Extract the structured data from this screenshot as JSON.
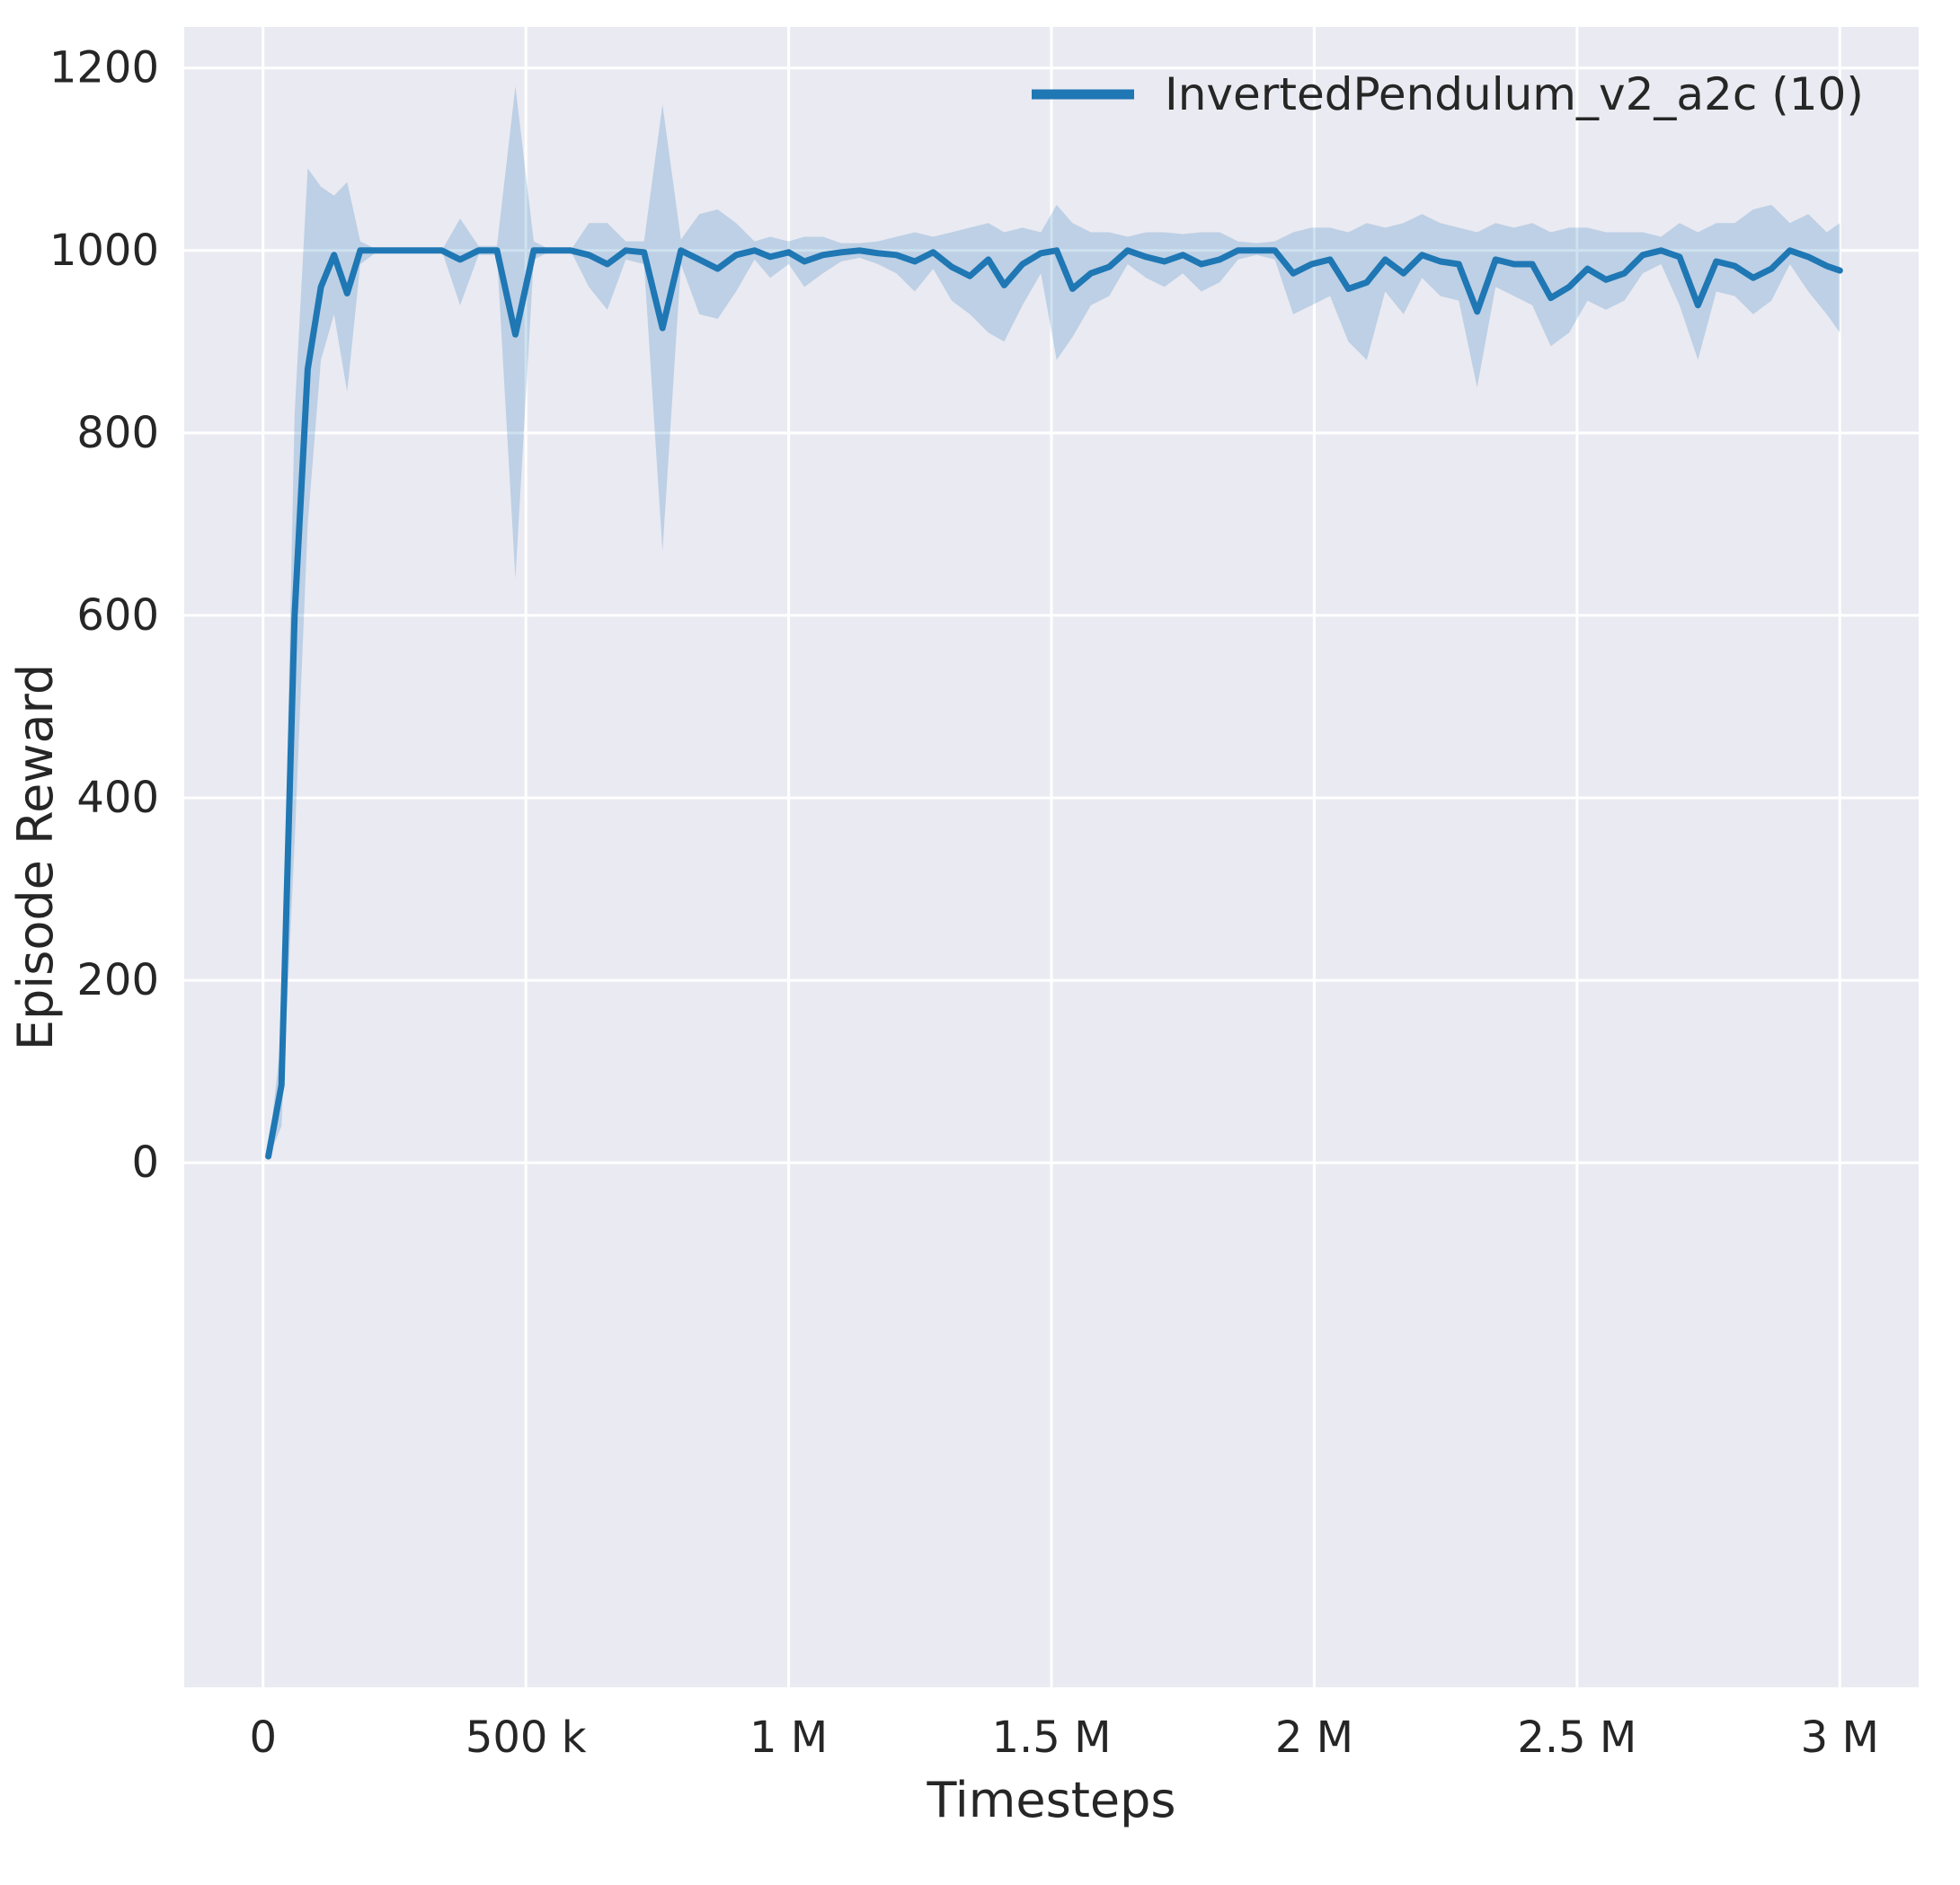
{
  "chart_data": {
    "type": "line",
    "title": "",
    "xlabel": "Timesteps",
    "ylabel": "Episode Reward",
    "grid": true,
    "legend_position": "upper right",
    "xlim": [
      -150000,
      3150000
    ],
    "ylim": [
      -575,
      1245
    ],
    "xticks": {
      "values": [
        0,
        500000,
        1000000,
        1500000,
        2000000,
        2500000,
        3000000
      ],
      "labels": [
        "0",
        "500 k",
        "1 M",
        "1.5 M",
        "2 M",
        "2.5 M",
        "3 M"
      ]
    },
    "yticks": {
      "values": [
        0,
        200,
        400,
        600,
        800,
        1000,
        1200
      ],
      "labels": [
        "0",
        "200",
        "400",
        "600",
        "800",
        "1000",
        "1200"
      ]
    },
    "colors": {
      "axes_background": "#eaeaf2",
      "grid": "#ffffff",
      "text": "#262626",
      "line": "#1f77b4",
      "band": "#1f77b4"
    },
    "band_opacity": 0.22,
    "series": [
      {
        "name": "InvertedPendulum_v2_a2c (10)",
        "color": "#1f77b4",
        "x": [
          10000,
          35000,
          60000,
          85000,
          110000,
          135000,
          160000,
          185000,
          220000,
          260000,
          300000,
          340000,
          375000,
          410000,
          445000,
          480000,
          515000,
          550000,
          585000,
          620000,
          655000,
          690000,
          725000,
          760000,
          795000,
          830000,
          865000,
          900000,
          935000,
          965000,
          1000000,
          1030000,
          1065000,
          1100000,
          1135000,
          1170000,
          1205000,
          1240000,
          1275000,
          1310000,
          1345000,
          1380000,
          1410000,
          1445000,
          1480000,
          1510000,
          1540000,
          1575000,
          1610000,
          1645000,
          1680000,
          1715000,
          1750000,
          1785000,
          1820000,
          1855000,
          1890000,
          1925000,
          1960000,
          1995000,
          2030000,
          2065000,
          2100000,
          2135000,
          2170000,
          2205000,
          2240000,
          2275000,
          2310000,
          2345000,
          2380000,
          2415000,
          2450000,
          2485000,
          2520000,
          2555000,
          2590000,
          2625000,
          2660000,
          2695000,
          2730000,
          2765000,
          2800000,
          2835000,
          2870000,
          2905000,
          2940000,
          2975000,
          3000000
        ],
        "mean": [
          7,
          85,
          600,
          870,
          960,
          995,
          953,
          1000,
          1000,
          1000,
          1000,
          1000,
          990,
          1000,
          1000,
          908,
          1000,
          1000,
          1000,
          995,
          985,
          1000,
          998,
          915,
          1000,
          990,
          980,
          995,
          1000,
          993,
          998,
          988,
          995,
          998,
          1000,
          997,
          995,
          988,
          998,
          982,
          972,
          990,
          962,
          985,
          997,
          1000,
          958,
          975,
          982,
          1000,
          993,
          988,
          995,
          985,
          990,
          1000,
          1000,
          1000,
          975,
          985,
          990,
          958,
          965,
          990,
          975,
          995,
          988,
          985,
          933,
          990,
          985,
          985,
          948,
          960,
          980,
          968,
          975,
          995,
          1000,
          993,
          940,
          988,
          983,
          970,
          980,
          1000,
          993,
          983,
          978
        ],
        "low": [
          5,
          40,
          350,
          700,
          880,
          930,
          845,
          985,
          1000,
          1000,
          1000,
          1000,
          940,
          995,
          995,
          640,
          990,
          1000,
          1000,
          960,
          935,
          990,
          985,
          670,
          985,
          930,
          925,
          955,
          990,
          970,
          985,
          960,
          975,
          988,
          992,
          985,
          975,
          955,
          980,
          945,
          930,
          910,
          900,
          940,
          975,
          880,
          905,
          940,
          950,
          985,
          970,
          960,
          975,
          955,
          965,
          990,
          995,
          990,
          930,
          940,
          950,
          900,
          880,
          955,
          930,
          970,
          950,
          945,
          850,
          960,
          950,
          940,
          895,
          910,
          945,
          935,
          945,
          975,
          985,
          940,
          880,
          955,
          950,
          930,
          945,
          985,
          955,
          930,
          910
        ],
        "high": [
          10,
          140,
          820,
          1090,
          1070,
          1060,
          1075,
          1010,
          1000,
          1000,
          1000,
          1000,
          1035,
          1005,
          1005,
          1180,
          1010,
          1000,
          1000,
          1030,
          1030,
          1010,
          1010,
          1160,
          1012,
          1040,
          1045,
          1030,
          1010,
          1015,
          1010,
          1015,
          1015,
          1008,
          1008,
          1010,
          1015,
          1020,
          1015,
          1020,
          1025,
          1030,
          1020,
          1025,
          1020,
          1050,
          1030,
          1020,
          1020,
          1015,
          1020,
          1020,
          1018,
          1020,
          1020,
          1010,
          1008,
          1010,
          1020,
          1025,
          1025,
          1020,
          1030,
          1025,
          1030,
          1040,
          1030,
          1025,
          1020,
          1030,
          1025,
          1030,
          1020,
          1025,
          1025,
          1020,
          1020,
          1020,
          1015,
          1030,
          1020,
          1030,
          1030,
          1045,
          1050,
          1030,
          1040,
          1020,
          1030
        ]
      }
    ]
  }
}
